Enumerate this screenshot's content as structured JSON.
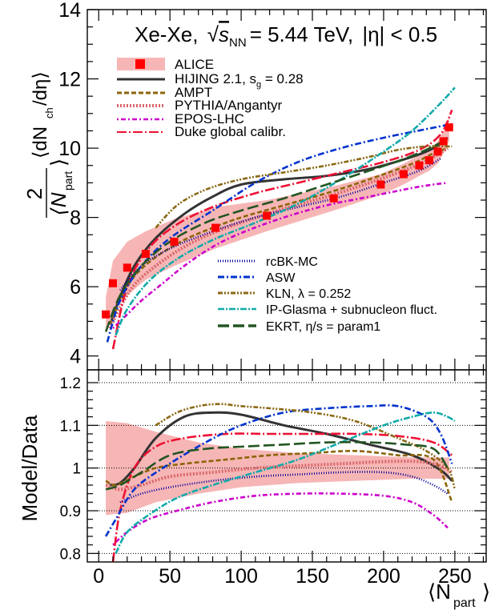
{
  "chart_data": [
    {
      "type": "line",
      "panel": "top",
      "title": "Xe-Xe, √sNN = 5.44 TeV, |η| < 0.5",
      "title_parts": {
        "system": "Xe-Xe,",
        "sqrt": "√",
        "s": "s",
        "nn": "NN",
        "energy": "= 5.44 TeV,",
        "eta": "|η| < 0.5"
      },
      "ylabel": "2/⟨Npart⟩ ⟨dNch/dη⟩",
      "ylabel_parts": {
        "two": "2",
        "npart": "⟨N",
        "part": "part",
        "close": "⟩",
        "dn": "⟨dN",
        "ch": "ch",
        "deta": "/dη⟩"
      },
      "xlim": [
        -8,
        272
      ],
      "ylim": [
        3.6,
        14
      ],
      "yticks": [
        4,
        6,
        8,
        10,
        12,
        14
      ],
      "data_series": {
        "name": "ALICE",
        "color": "#ff0000",
        "band_color": "#f7b6b6",
        "x": [
          5,
          10,
          20,
          33,
          53,
          82,
          118,
          165,
          198,
          214,
          225,
          232,
          238,
          242,
          246
        ],
        "y": [
          5.2,
          6.1,
          6.55,
          6.95,
          7.3,
          7.7,
          8.05,
          8.55,
          8.95,
          9.25,
          9.5,
          9.65,
          9.9,
          10.2,
          10.6
        ],
        "band_low": [
          4.65,
          5.3,
          5.75,
          6.2,
          6.6,
          7.1,
          7.6,
          8.2,
          8.65,
          8.95,
          9.2,
          9.35,
          9.55,
          9.85,
          10.2
        ],
        "band_high": [
          5.7,
          6.75,
          7.3,
          7.6,
          7.95,
          8.3,
          8.5,
          8.9,
          9.25,
          9.55,
          9.8,
          9.95,
          10.2,
          10.5,
          10.9
        ]
      },
      "series": [
        {
          "name": "HIJING 2.1, s_g = 0.28",
          "legend_label": "HIJING 2.1, s",
          "legend_sub": "g",
          "legend_tail": " = 0.28",
          "color": "#333333",
          "dash": "solid",
          "x": [
            8,
            15,
            25,
            40,
            60,
            80,
            100,
            130,
            160,
            190,
            220,
            235,
            245
          ],
          "y": [
            4.9,
            5.7,
            6.6,
            7.4,
            8.1,
            8.6,
            8.95,
            9.1,
            9.2,
            9.4,
            9.75,
            10.0,
            10.3
          ]
        },
        {
          "name": "AMPT",
          "color": "#8b6508",
          "dash": "6,3",
          "x": [
            8,
            15,
            25,
            40,
            60,
            80,
            100,
            130,
            160,
            190,
            220,
            235,
            245
          ],
          "y": [
            4.9,
            5.6,
            6.3,
            6.85,
            7.35,
            7.7,
            8.0,
            8.35,
            8.7,
            9.1,
            9.55,
            9.85,
            10.0
          ]
        },
        {
          "name": "PYTHIA/Angantyr",
          "color": "#d9666a",
          "dash": "2,2",
          "x": [
            8,
            15,
            25,
            40,
            60,
            80,
            100,
            130,
            160,
            190,
            220,
            235,
            245
          ],
          "y": [
            4.8,
            5.4,
            6.05,
            6.6,
            7.15,
            7.55,
            7.85,
            8.25,
            8.6,
            9.0,
            9.45,
            9.75,
            10.0
          ]
        },
        {
          "name": "EPOS-LHC",
          "color": "#cc00cc",
          "dash": "2,3,6,3",
          "x": [
            10,
            20,
            30,
            45,
            60,
            80,
            100,
            130,
            160,
            190,
            220,
            235,
            245
          ],
          "y": [
            4.8,
            5.2,
            5.6,
            6.1,
            6.6,
            7.15,
            7.55,
            8.0,
            8.35,
            8.6,
            8.85,
            8.95,
            9.0
          ]
        },
        {
          "name": "Duke global calibr.",
          "color": "#ee1133",
          "dash": "12,3,2,3",
          "x": [
            10,
            20,
            35,
            55,
            80,
            110,
            140,
            170,
            200,
            225,
            240,
            248
          ],
          "y": [
            4.2,
            6.0,
            7.1,
            7.8,
            8.3,
            8.7,
            9.0,
            9.3,
            9.6,
            9.95,
            10.4,
            11.1
          ]
        },
        {
          "name": "rcBK-MC",
          "color": "#000099",
          "dash": "1,2",
          "x": [
            15,
            30,
            50,
            80,
            110,
            140,
            170,
            200,
            225,
            240
          ],
          "y": [
            5.9,
            6.6,
            7.1,
            7.6,
            8.0,
            8.3,
            8.6,
            9.0,
            9.35,
            9.7
          ]
        },
        {
          "name": "ASW",
          "color": "#0033cc",
          "dash": "8,3,2,3",
          "x": [
            6,
            15,
            30,
            50,
            80,
            110,
            140,
            170,
            200,
            230,
            248
          ],
          "y": [
            4.4,
            5.6,
            6.6,
            7.4,
            8.2,
            9.0,
            9.6,
            10.0,
            10.3,
            10.55,
            10.7
          ]
        },
        {
          "name": "KLN, λ = 0.252",
          "legend_label": "KLN, λ = 0.252",
          "color": "#8b6914",
          "dash": "6,2,2,2,2,2",
          "x": [
            40,
            55,
            75,
            100,
            130,
            160,
            190,
            210,
            230,
            248
          ],
          "y": [
            7.7,
            8.35,
            8.8,
            9.1,
            9.3,
            9.5,
            9.75,
            9.95,
            10.05,
            10.05
          ]
        },
        {
          "name": "IP-Glasma + subnucleon fluct.",
          "color": "#11aaaa",
          "dash": "8,2,2,2",
          "x": [
            12,
            20,
            35,
            55,
            80,
            110,
            140,
            170,
            200,
            220,
            240,
            250
          ],
          "y": [
            4.6,
            5.35,
            6.15,
            6.8,
            7.35,
            7.85,
            8.4,
            9.1,
            9.9,
            10.5,
            11.3,
            11.75
          ]
        },
        {
          "name": "EKRT, η/s = param1",
          "color": "#225522",
          "dash": "14,5",
          "x": [
            5,
            15,
            30,
            50,
            75,
            100,
            130,
            160,
            190,
            215,
            235,
            245
          ],
          "y": [
            4.7,
            5.75,
            6.6,
            7.3,
            7.85,
            8.2,
            8.55,
            8.95,
            9.35,
            9.7,
            10.05,
            10.3
          ]
        }
      ],
      "legend_left_title": "ALICE"
    },
    {
      "type": "line",
      "panel": "bottom",
      "ylabel": "Model/Data",
      "xlabel": "⟨Npart⟩",
      "xlabel_parts": {
        "open": "⟨N",
        "part": "part",
        "close": "⟩"
      },
      "xlim": [
        -8,
        272
      ],
      "ylim": [
        0.78,
        1.23
      ],
      "yticks": [
        0.8,
        0.9,
        1,
        1.1,
        1.2
      ],
      "ytick_labels": [
        "0.8",
        "0.9",
        "1",
        "1.1",
        "1.2"
      ],
      "xticks": [
        0,
        50,
        100,
        150,
        200,
        250
      ],
      "xtick_labels": [
        "0",
        "50",
        "100",
        "150",
        "200",
        "250"
      ],
      "band": {
        "x": [
          5,
          20,
          40,
          70,
          100,
          140,
          180,
          220,
          246
        ],
        "low": [
          0.89,
          0.895,
          0.92,
          0.94,
          0.955,
          0.965,
          0.97,
          0.975,
          0.975
        ],
        "high": [
          1.11,
          1.105,
          1.085,
          1.06,
          1.045,
          1.035,
          1.03,
          1.025,
          1.025
        ]
      },
      "series": [
        {
          "name": "HIJING 2.1",
          "color": "#333333",
          "dash": "solid",
          "x": [
            8,
            15,
            25,
            40,
            60,
            80,
            100,
            130,
            160,
            190,
            220,
            240,
            248
          ],
          "y": [
            0.96,
            0.965,
            1.0,
            1.07,
            1.12,
            1.13,
            1.125,
            1.1,
            1.08,
            1.055,
            1.03,
            0.995,
            0.97
          ]
        },
        {
          "name": "AMPT",
          "color": "#8b6508",
          "dash": "6,3",
          "x": [
            5,
            12,
            25,
            40,
            60,
            90,
            120,
            150,
            180,
            210,
            235,
            248
          ],
          "y": [
            0.97,
            0.96,
            0.98,
            1.0,
            1.01,
            1.02,
            1.03,
            1.035,
            1.04,
            1.03,
            1.02,
            0.92
          ]
        },
        {
          "name": "PYTHIA/Angantyr",
          "color": "#d9666a",
          "dash": "2,2",
          "x": [
            5,
            15,
            30,
            50,
            80,
            110,
            140,
            170,
            200,
            225,
            240,
            248
          ],
          "y": [
            0.96,
            0.95,
            0.96,
            0.98,
            0.99,
            1.0,
            1.005,
            1.01,
            1.015,
            1.015,
            1.005,
            0.99
          ]
        },
        {
          "name": "EPOS-LHC",
          "color": "#cc00cc",
          "dash": "2,3,6,3",
          "x": [
            10,
            20,
            35,
            55,
            80,
            110,
            140,
            170,
            200,
            220,
            235,
            245
          ],
          "y": [
            0.82,
            0.85,
            0.88,
            0.9,
            0.92,
            0.935,
            0.94,
            0.94,
            0.935,
            0.92,
            0.89,
            0.86
          ]
        },
        {
          "name": "Duke global calibr.",
          "color": "#ee1133",
          "dash": "12,3,2,3",
          "x": [
            10,
            15,
            25,
            40,
            60,
            90,
            120,
            150,
            180,
            210,
            235,
            248
          ],
          "y": [
            0.78,
            0.9,
            1.0,
            1.05,
            1.07,
            1.08,
            1.08,
            1.08,
            1.08,
            1.075,
            1.06,
            1.03
          ]
        },
        {
          "name": "rcBK-MC",
          "color": "#000099",
          "dash": "1,2",
          "x": [
            15,
            30,
            50,
            80,
            110,
            140,
            170,
            200,
            220,
            235,
            245
          ],
          "y": [
            0.92,
            0.94,
            0.955,
            0.97,
            0.98,
            0.985,
            0.99,
            0.99,
            0.98,
            0.96,
            0.94
          ]
        },
        {
          "name": "ASW",
          "color": "#0033cc",
          "dash": "8,3,2,3",
          "x": [
            5,
            12,
            25,
            45,
            75,
            100,
            130,
            160,
            190,
            210,
            230,
            240,
            248
          ],
          "y": [
            0.84,
            0.88,
            0.95,
            1.0,
            1.06,
            1.1,
            1.13,
            1.14,
            1.145,
            1.145,
            1.12,
            1.08,
            1.01
          ]
        },
        {
          "name": "KLN",
          "color": "#8b6914",
          "dash": "6,2,2,2,2,2",
          "x": [
            40,
            55,
            70,
            85,
            100,
            120,
            150,
            180,
            210,
            230,
            245,
            250
          ],
          "y": [
            1.1,
            1.13,
            1.145,
            1.15,
            1.145,
            1.14,
            1.13,
            1.11,
            1.07,
            1.04,
            1.0,
            0.95
          ]
        },
        {
          "name": "IP-Glasma + subnucleon fluct.",
          "color": "#11aaaa",
          "dash": "8,2,2,2",
          "x": [
            12,
            20,
            35,
            55,
            80,
            110,
            140,
            170,
            200,
            220,
            235,
            245,
            250
          ],
          "y": [
            0.8,
            0.85,
            0.89,
            0.93,
            0.96,
            0.99,
            1.02,
            1.06,
            1.1,
            1.12,
            1.13,
            1.12,
            1.11
          ]
        },
        {
          "name": "EKRT",
          "color": "#225522",
          "dash": "14,5",
          "x": [
            5,
            15,
            30,
            50,
            75,
            100,
            130,
            160,
            190,
            215,
            235,
            245
          ],
          "y": [
            0.95,
            0.96,
            0.99,
            1.03,
            1.045,
            1.05,
            1.055,
            1.06,
            1.06,
            1.055,
            1.045,
            1.0
          ]
        }
      ]
    }
  ],
  "legend_top_items": [
    "ALICE",
    "HIJING 2.1",
    "AMPT",
    "PYTHIA/Angantyr",
    "EPOS-LHC",
    "Duke global calibr."
  ],
  "legend_bottom_items": [
    "rcBK-MC",
    "ASW",
    "KLN",
    "IP-Glasma + subnucleon fluct.",
    "EKRT"
  ]
}
